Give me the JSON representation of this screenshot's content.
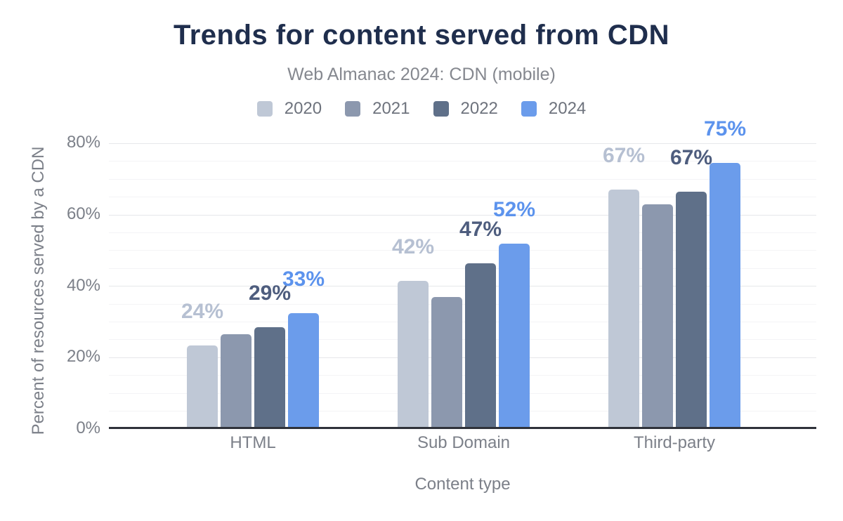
{
  "chart_data": {
    "type": "bar",
    "title": "Trends for content served from CDN",
    "subtitle": "Web Almanac 2024: CDN (mobile)",
    "xlabel": "Content type",
    "ylabel": "Percent of resources served by a CDN",
    "categories": [
      "HTML",
      "Sub Domain",
      "Third-party"
    ],
    "series": [
      {
        "name": "2020",
        "color": "#bfc8d6",
        "label_color": "#b6c0d2",
        "values": [
          23.5,
          41.5,
          67
        ],
        "data_labels": [
          "24%",
          "42%",
          "67%"
        ]
      },
      {
        "name": "2021",
        "color": "#8c98ae",
        "label_color": null,
        "values": [
          26.5,
          37,
          63
        ],
        "data_labels": [
          null,
          null,
          null
        ]
      },
      {
        "name": "2022",
        "color": "#5f7089",
        "label_color": "#4e5d7e",
        "values": [
          28.5,
          46.5,
          66.5
        ],
        "data_labels": [
          "29%",
          "47%",
          "67%"
        ]
      },
      {
        "name": "2024",
        "color": "#6b9ceb",
        "label_color": "#5c93ed",
        "values": [
          32.5,
          52,
          74.5
        ],
        "data_labels": [
          "33%",
          "52%",
          "75%"
        ]
      }
    ],
    "y_ticks": [
      {
        "value": 0,
        "label": "0%"
      },
      {
        "value": 20,
        "label": "20%"
      },
      {
        "value": 40,
        "label": "40%"
      },
      {
        "value": 60,
        "label": "60%"
      },
      {
        "value": 80,
        "label": "80%"
      }
    ],
    "ylim": [
      0,
      84
    ],
    "grid": {
      "major_step": 20,
      "minor_step": 5,
      "visible": true
    },
    "legend_position": "top",
    "colors": {
      "title": "#1f2e4d",
      "subtitle": "#85888f",
      "axis_text": "#7c8089",
      "baseline": "#2f323a"
    }
  }
}
